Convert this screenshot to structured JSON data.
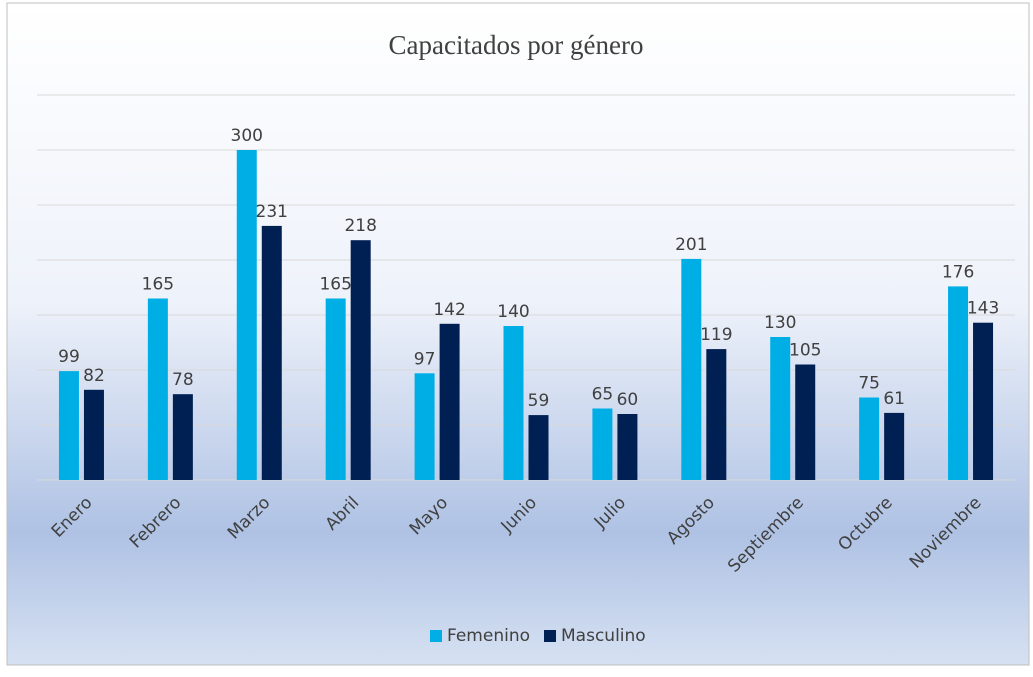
{
  "chart_data": {
    "type": "bar",
    "title": "Capacitados por género",
    "categories": [
      "Enero",
      "Febrero",
      "Marzo",
      "Abril",
      "Mayo",
      "Junio",
      "Julio",
      "Agosto",
      "Septiembre",
      "Octubre",
      "Noviembre"
    ],
    "series": [
      {
        "name": "Femenino",
        "color": "#00aee6",
        "values": [
          99,
          165,
          300,
          165,
          97,
          140,
          65,
          201,
          130,
          75,
          176
        ]
      },
      {
        "name": "Masculino",
        "color": "#001f52",
        "values": [
          82,
          78,
          231,
          218,
          142,
          59,
          60,
          119,
          105,
          61,
          143
        ]
      }
    ],
    "ylim": [
      0,
      350
    ],
    "yticks": [
      0,
      50,
      100,
      150,
      200,
      250,
      300,
      350
    ],
    "grid": true,
    "legend": "bottom"
  }
}
